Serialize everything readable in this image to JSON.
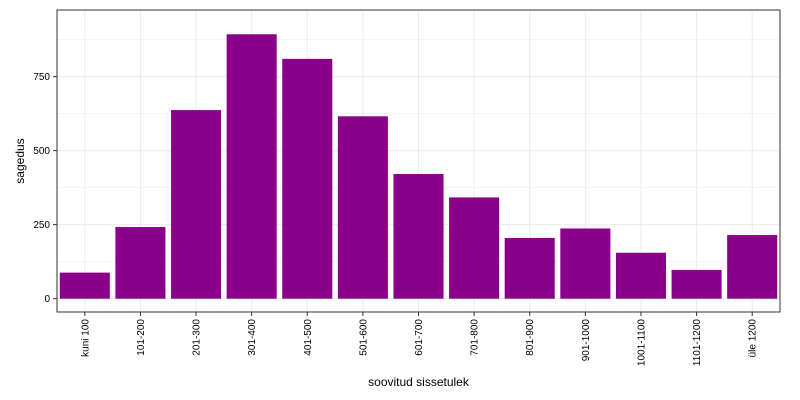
{
  "chart_data": {
    "type": "bar",
    "title": "",
    "xlabel": "soovitud sissetulek",
    "ylabel": "sagedus",
    "categories": [
      "kuni 100",
      "101-200",
      "201-300",
      "301-400",
      "401-500",
      "501-600",
      "601-700",
      "701-800",
      "801-900",
      "901-1000",
      "1001-1100",
      "1101-1200",
      "üle 1200"
    ],
    "values": [
      88,
      242,
      637,
      893,
      810,
      616,
      421,
      342,
      205,
      237,
      155,
      97,
      215
    ],
    "ylim": [
      -45,
      975
    ],
    "yticks": [
      0,
      250,
      500,
      750
    ],
    "ytick_labels": [
      "0",
      "250",
      "500",
      "750"
    ],
    "grid": true,
    "bar_color": "#8B008B",
    "grid_color": "#EBEBEB",
    "legend": "none"
  }
}
